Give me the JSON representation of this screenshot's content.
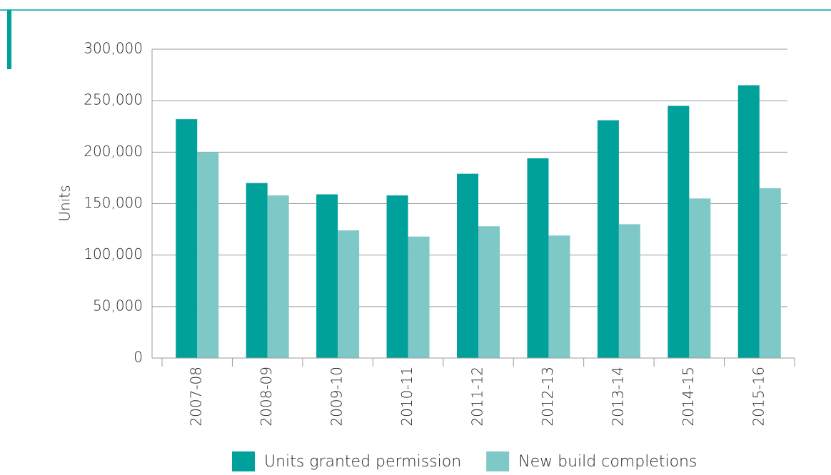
{
  "chart_data": {
    "type": "bar",
    "y_label": "Units",
    "categories": [
      "2007-08",
      "2008-09",
      "2009-10",
      "2010-11",
      "2011-12",
      "2012-13",
      "2013-14",
      "2014-15",
      "2015-16"
    ],
    "series": [
      {
        "name": "Units granted permission",
        "color": "#00a19a",
        "values": [
          232000,
          170000,
          159000,
          158000,
          179000,
          194000,
          231000,
          245000,
          265000
        ]
      },
      {
        "name": "New build completions",
        "color": "#7fc8c8",
        "values": [
          200000,
          158000,
          124000,
          118000,
          128000,
          119000,
          130000,
          155000,
          165000
        ]
      }
    ],
    "ylim": [
      0,
      300000
    ],
    "yticks": [
      0,
      {
        "value": 50000,
        "label": "50,000"
      },
      {
        "value": 100000,
        "label": "100,000"
      },
      {
        "value": 150000,
        "label": "150,000"
      },
      {
        "value": 200000,
        "label": "200,000"
      },
      {
        "value": 250000,
        "label": "250,000"
      },
      {
        "value": 300000,
        "label": "300,000"
      }
    ],
    "grid": true
  }
}
